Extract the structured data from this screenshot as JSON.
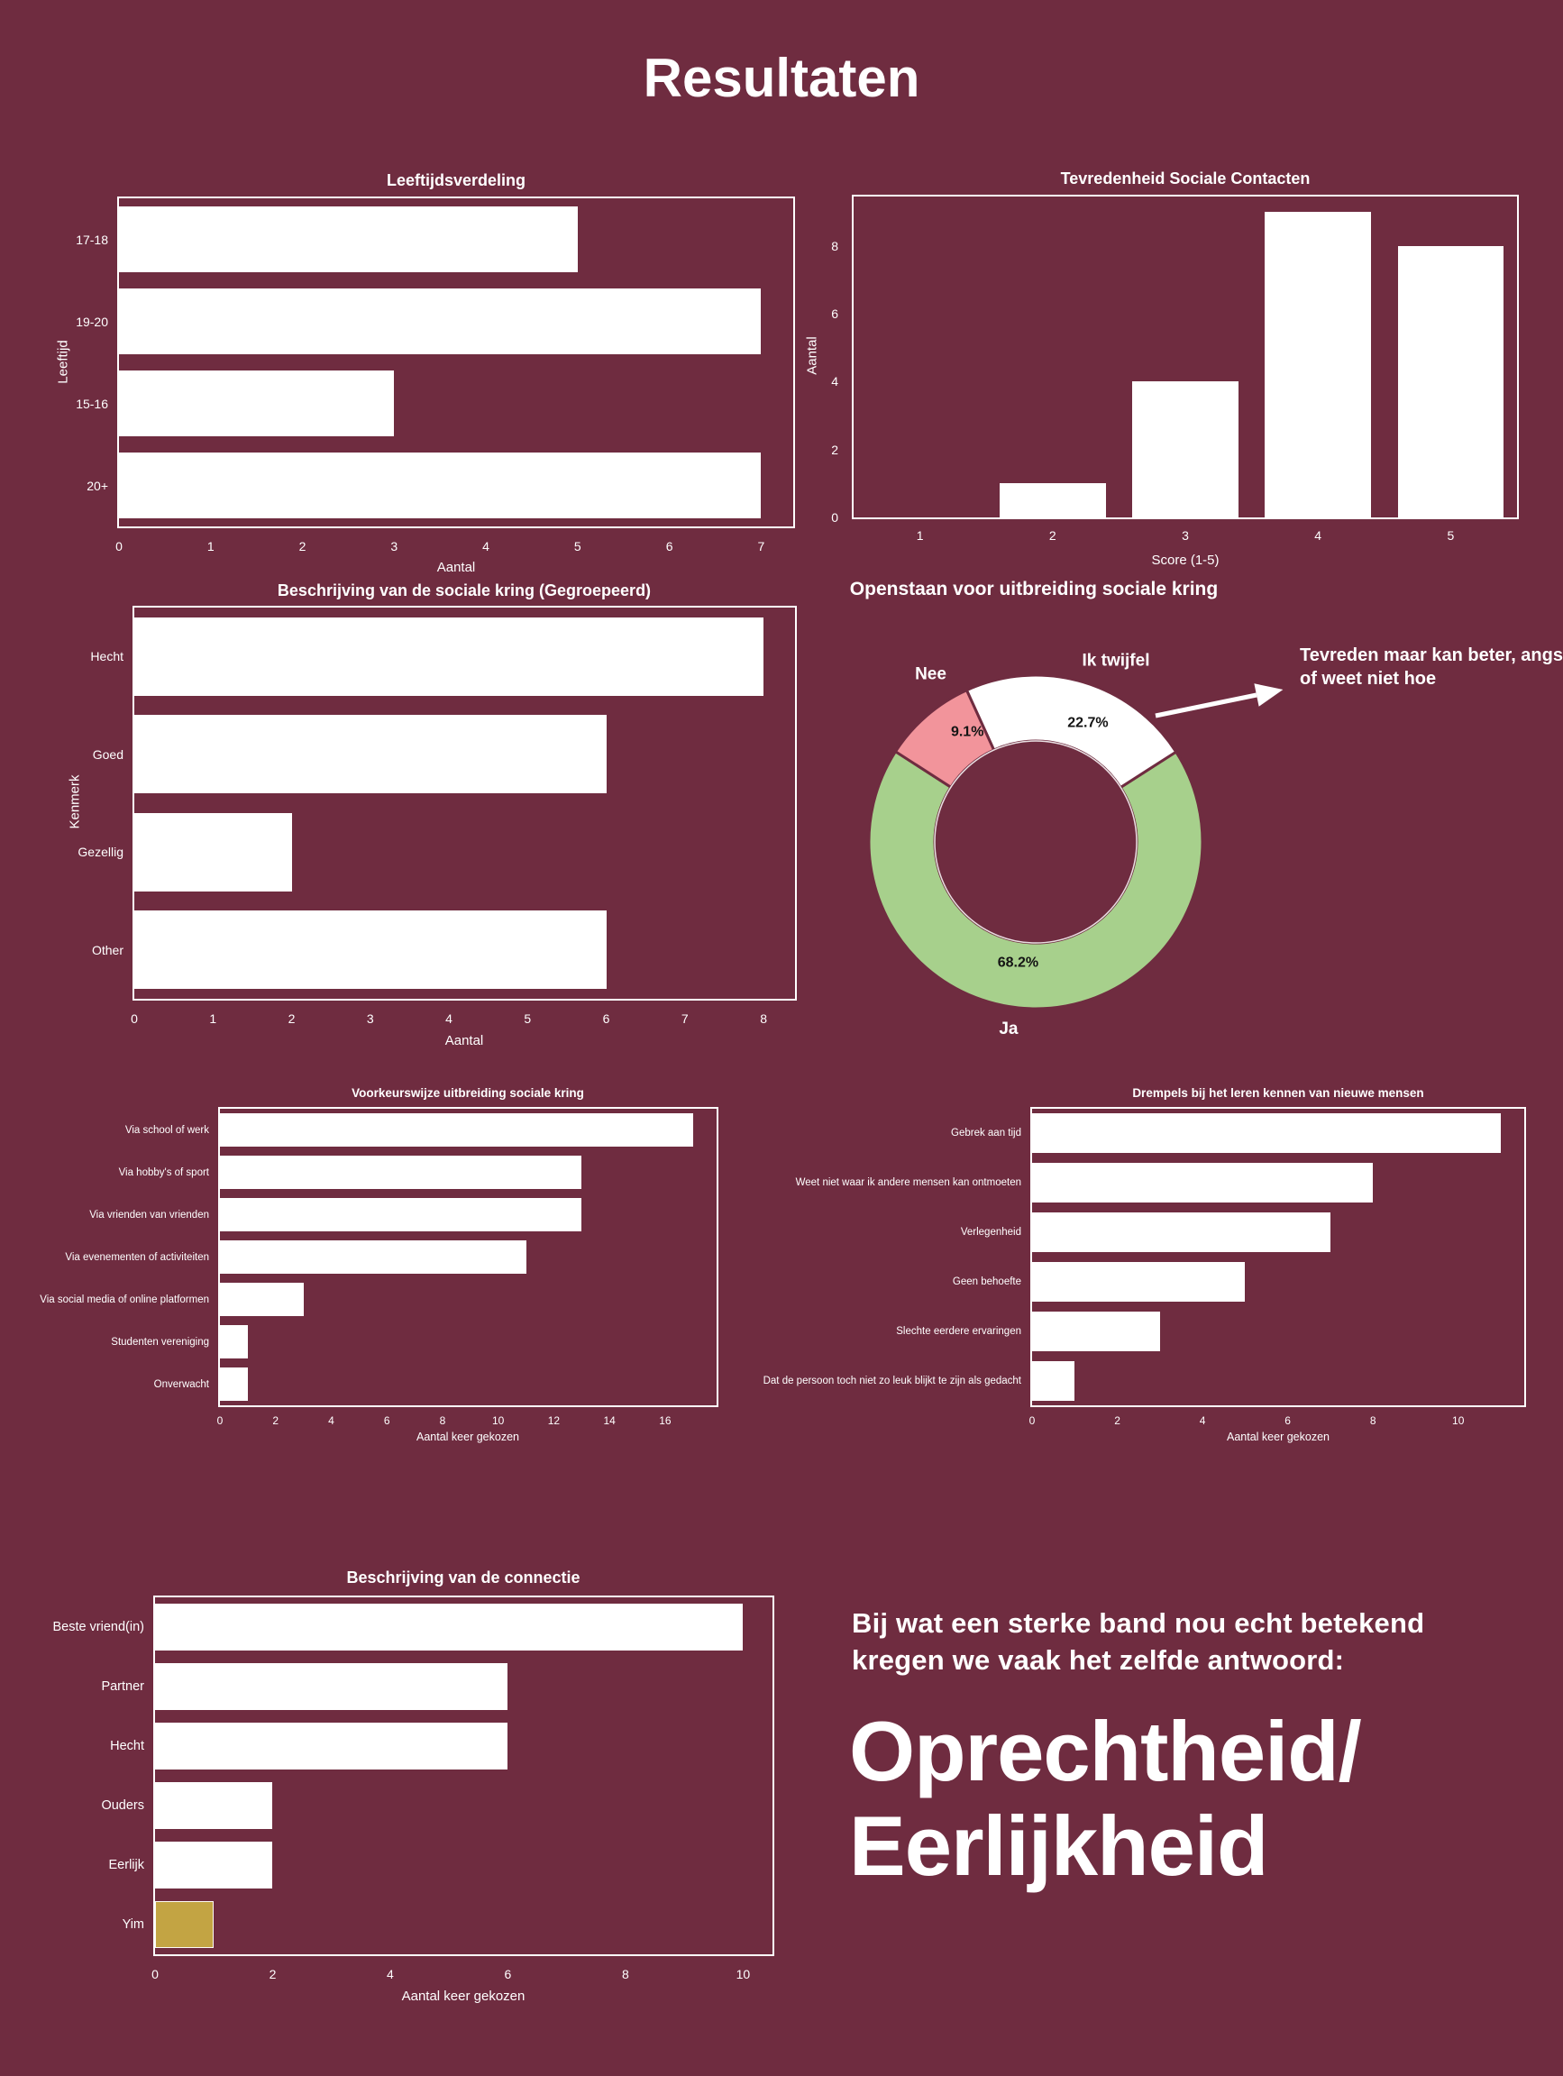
{
  "title": "Resultaten",
  "colors": {
    "background": "#6f2c40",
    "bar": "#ffffff",
    "text": "#ffffff",
    "green": "#a7d08c",
    "pink": "#f2949b",
    "gold": "#c3a443",
    "pct_label": "#141414"
  },
  "chart_data": [
    {
      "id": "leeftijd",
      "type": "barh",
      "title": "Leeftijdsverdeling",
      "xlabel": "Aantal",
      "ylabel": "Leeftijd",
      "categories": [
        "17-18",
        "19-20",
        "15-16",
        "20+"
      ],
      "values": [
        5,
        7,
        3,
        7
      ],
      "xticks": [
        0,
        1,
        2,
        3,
        4,
        5,
        6,
        7
      ],
      "xmax": 7.35,
      "grid": false
    },
    {
      "id": "tevredenheid",
      "type": "bar",
      "title": "Tevredenheid Sociale Contacten",
      "xlabel": "Score (1-5)",
      "ylabel": "Aantal",
      "categories": [
        "1",
        "2",
        "3",
        "4",
        "5"
      ],
      "values": [
        0,
        1,
        4,
        9,
        8
      ],
      "yticks": [
        0,
        2,
        4,
        6,
        8
      ],
      "ymax": 9.45,
      "grid": false
    },
    {
      "id": "kring",
      "type": "barh",
      "title": "Beschrijving van de sociale kring (Gegroepeerd)",
      "xlabel": "Aantal",
      "ylabel": "Kenmerk",
      "categories": [
        "Hecht",
        "Goed",
        "Gezellig",
        "Other"
      ],
      "values": [
        8,
        6,
        2,
        6
      ],
      "xticks": [
        0,
        1,
        2,
        3,
        4,
        5,
        6,
        7,
        8
      ],
      "xmax": 8.4,
      "grid": false
    },
    {
      "id": "openstaan",
      "type": "donut",
      "title": "Openstaan voor uitbreiding sociale kring",
      "rotation_deg": 57.3,
      "slices": [
        {
          "label": "Ja",
          "pct": 68.2,
          "color": "#a7d08c"
        },
        {
          "label": "Nee",
          "pct": 9.1,
          "color": "#f2949b"
        },
        {
          "label": "Ik twijfel",
          "pct": 22.7,
          "color": "#ffffff"
        }
      ],
      "annotation": "Tevreden maar kan beter, angst of weet niet hoe"
    },
    {
      "id": "voorkeur",
      "type": "barh",
      "title": "Voorkeurswijze uitbreiding sociale kring",
      "xlabel": "Aantal keer gekozen",
      "ylabel": "",
      "categories": [
        "Via school of werk",
        "Via hobby's of sport",
        "Via vrienden van vrienden",
        "Via evenementen of activiteiten",
        "Via social media of online platformen",
        "Studenten vereniging",
        "Onverwacht"
      ],
      "values": [
        17,
        13,
        13,
        11,
        3,
        1,
        1
      ],
      "xticks": [
        0,
        2,
        4,
        6,
        8,
        10,
        12,
        14,
        16
      ],
      "xmax": 17.85,
      "grid": false
    },
    {
      "id": "drempels",
      "type": "barh",
      "title": "Drempels bij het leren kennen van nieuwe mensen",
      "xlabel": "Aantal keer gekozen",
      "ylabel": "",
      "categories": [
        "Gebrek aan tijd",
        "Weet niet waar ik andere mensen kan ontmoeten",
        "Verlegenheid",
        "Geen behoefte",
        "Slechte eerdere ervaringen",
        "Dat de persoon toch niet zo leuk blijkt te zijn als gedacht"
      ],
      "values": [
        11,
        8,
        7,
        5,
        3,
        1
      ],
      "xticks": [
        0,
        2,
        4,
        6,
        8,
        10
      ],
      "xmax": 11.55,
      "grid": false
    },
    {
      "id": "connectie",
      "type": "barh",
      "title": "Beschrijving van de connectie",
      "xlabel": "Aantal keer gekozen",
      "ylabel": "",
      "categories": [
        "Beste vriend(in)",
        "Partner",
        "Hecht",
        "Ouders",
        "Eerlijk",
        "Yim"
      ],
      "values": [
        10,
        6,
        6,
        2,
        2,
        1
      ],
      "bar_colors": [
        "#ffffff",
        "#ffffff",
        "#ffffff",
        "#ffffff",
        "#ffffff",
        "#c3a443"
      ],
      "xticks": [
        0,
        2,
        4,
        6,
        8,
        10
      ],
      "xmax": 10.5,
      "grid": false
    }
  ],
  "footer": {
    "intro": "Bij wat een sterke band nou echt betekend kregen we vaak het zelfde antwoord:",
    "highlight_line1": "Oprechtheid/",
    "highlight_line2": "Eerlijkheid"
  }
}
